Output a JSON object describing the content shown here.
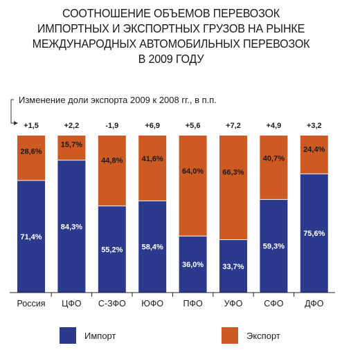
{
  "title_lines": [
    "СООТНОШЕНИЕ ОБЪЕМОВ ПЕРЕВОЗОК",
    "ИМПОРТНЫХ И ЭКСПОРТНЫХ ГРУЗОВ НА РЫНКЕ",
    "МЕЖДУНАРОДНЫХ АВТОМОБИЛЬНЫХ ПЕРЕВОЗОК",
    "В 2009 ГОДУ"
  ],
  "colors": {
    "import": "#2b3a8c",
    "export": "#cc5a22"
  },
  "chart_data": {
    "type": "bar",
    "stacked": true,
    "percent": true,
    "title": "СООТНОШЕНИЕ ОБЪЕМОВ ПЕРЕВОЗОК ИМПОРТНЫХ И ЭКСПОРТНЫХ ГРУЗОВ НА РЫНКЕ МЕЖДУНАРОДНЫХ АВТОМОБИЛЬНЫХ ПЕРЕВОЗОК В 2009 ГОДУ",
    "annotation_title": "Изменение доли экспорта 2009 к 2008 гг., в п.п.",
    "categories": [
      "Россия",
      "ЦФО",
      "С-ЗФО",
      "ЮФО",
      "ПФО",
      "УФО",
      "СФО",
      "ДФО"
    ],
    "change_labels": [
      "+1,5",
      "+2,2",
      "-1,9",
      "+6,9",
      "+5,6",
      "+7,2",
      "+4,9",
      "+3,2"
    ],
    "series": [
      {
        "name": "Импорт",
        "values": [
          71.4,
          84.3,
          55.2,
          58.4,
          36.0,
          33.7,
          59.3,
          75.6
        ],
        "labels": [
          "71,4%",
          "84,3%",
          "55,2%",
          "58,4%",
          "36,0%",
          "33,7%",
          "59,3%",
          "75,6%"
        ]
      },
      {
        "name": "Экспорт",
        "values": [
          28.6,
          15.7,
          44.8,
          41.6,
          64.0,
          66.3,
          40.7,
          24.4
        ],
        "labels": [
          "28,6%",
          "15,7%",
          "44,8%",
          "41,6%",
          "64,0%",
          "66,3%",
          "40,7%",
          "24,4%"
        ]
      }
    ],
    "ylim": [
      0,
      100
    ],
    "legend_position": "bottom"
  }
}
